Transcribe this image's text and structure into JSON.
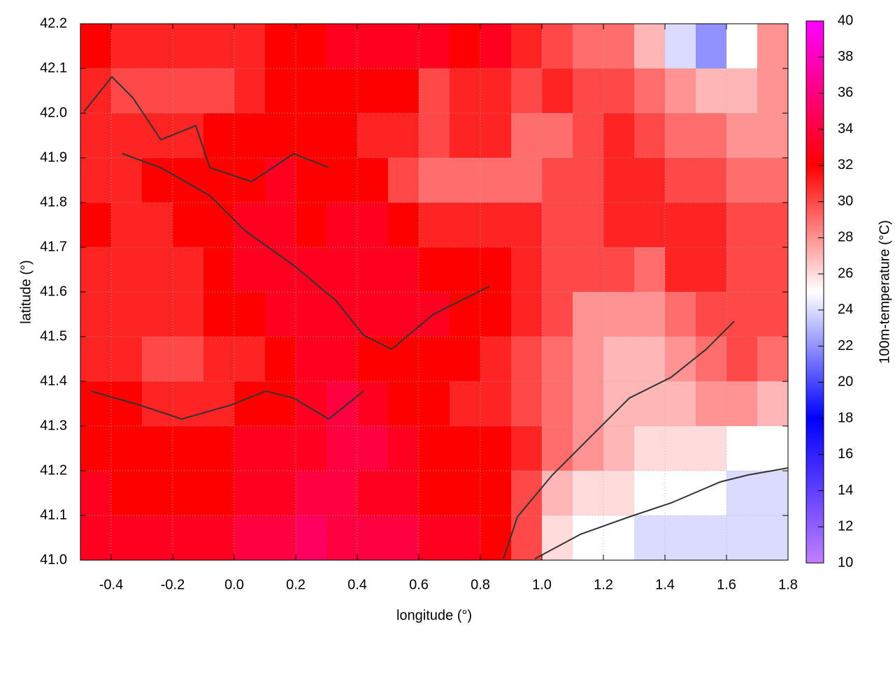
{
  "chart_data": {
    "type": "heatmap",
    "x_label": "longitude (°)",
    "y_label": "latitude (°)",
    "colorbar_label": "100m-temperature (°C)",
    "x": [
      -0.45,
      -0.35,
      -0.25,
      -0.15,
      -0.05,
      0.05,
      0.15,
      0.25,
      0.35,
      0.45,
      0.55,
      0.65,
      0.75,
      0.85,
      0.95,
      1.05,
      1.15,
      1.25,
      1.35,
      1.45,
      1.55,
      1.65,
      1.75
    ],
    "y": [
      42.15,
      42.05,
      41.95,
      41.85,
      41.75,
      41.65,
      41.55,
      41.45,
      41.35,
      41.25,
      41.15,
      41.05
    ],
    "z": [
      [
        32,
        31,
        31,
        31,
        31,
        31,
        32,
        32,
        33,
        33,
        33,
        33,
        32,
        33,
        31,
        30,
        29,
        29,
        27,
        24,
        22,
        25,
        28
      ],
      [
        31,
        30,
        30,
        30,
        30,
        31,
        32,
        32,
        32,
        32,
        32,
        30,
        31,
        31,
        30,
        31,
        30,
        30,
        29,
        28,
        27,
        27,
        28
      ],
      [
        31,
        31,
        31,
        31,
        32,
        32,
        32,
        32,
        32,
        31,
        31,
        30,
        31,
        31,
        29,
        29,
        30,
        31,
        30,
        29,
        29,
        28,
        28
      ],
      [
        31,
        31,
        32,
        32,
        32,
        32,
        33,
        32,
        32,
        32,
        30,
        29,
        29,
        29,
        29,
        30,
        30,
        31,
        31,
        30,
        30,
        29,
        29
      ],
      [
        32,
        31,
        31,
        32,
        32,
        33,
        33,
        32,
        33,
        33,
        32,
        31,
        31,
        31,
        31,
        30,
        30,
        31,
        31,
        31,
        31,
        30,
        30
      ],
      [
        31,
        31,
        31,
        31,
        32,
        33,
        33,
        33,
        33,
        33,
        33,
        32,
        32,
        32,
        31,
        30,
        30,
        30,
        29,
        31,
        31,
        30,
        30
      ],
      [
        31,
        31,
        31,
        31,
        32,
        32,
        33,
        33,
        33,
        33,
        33,
        33,
        32,
        32,
        31,
        30,
        28,
        28,
        28,
        29,
        30,
        30,
        30
      ],
      [
        31,
        31,
        30,
        30,
        31,
        31,
        32,
        33,
        33,
        32,
        32,
        32,
        32,
        31,
        30,
        29,
        28,
        27,
        27,
        28,
        29,
        30,
        29
      ],
      [
        32,
        32,
        31,
        31,
        31,
        32,
        32,
        33,
        34,
        33,
        32,
        32,
        31,
        31,
        30,
        29,
        28,
        27,
        27,
        27,
        28,
        28,
        27
      ],
      [
        32,
        32,
        32,
        32,
        32,
        33,
        33,
        33,
        34,
        34,
        33,
        32,
        32,
        32,
        31,
        29,
        28,
        27,
        26,
        26,
        26,
        25,
        25
      ],
      [
        33,
        32,
        32,
        32,
        32,
        33,
        33,
        34,
        34,
        33,
        33,
        32,
        32,
        32,
        30,
        27,
        26,
        26,
        25,
        25,
        25,
        24,
        24
      ],
      [
        33,
        33,
        33,
        33,
        33,
        34,
        34,
        35,
        34,
        34,
        34,
        33,
        33,
        32,
        30,
        26,
        25,
        25,
        24,
        24,
        24,
        24,
        24
      ]
    ],
    "xlim": [
      -0.5,
      1.8
    ],
    "xticks": [
      -0.4,
      -0.2,
      {
        "value": 0,
        "label": "0.0"
      },
      0.2,
      0.4,
      0.6,
      0.8,
      {
        "value": 1,
        "label": "1.0"
      },
      1.2,
      1.4,
      1.6,
      1.8
    ],
    "ylim": [
      41.0,
      42.2
    ],
    "yticks": [
      {
        "value": 41,
        "label": "41.0"
      },
      41.1,
      41.2,
      41.3,
      41.4,
      41.5,
      41.6,
      41.7,
      41.8,
      41.9,
      {
        "value": 42,
        "label": "42.0"
      },
      42.1,
      42.2
    ],
    "clim": [
      10,
      40
    ],
    "cticks": [
      10,
      12,
      14,
      16,
      18,
      20,
      22,
      24,
      26,
      28,
      30,
      32,
      34,
      36,
      38,
      40
    ],
    "colormap": [
      {
        "value": 10,
        "color": "#c080ff"
      },
      {
        "value": 18,
        "color": "#0000ff"
      },
      {
        "value": 25,
        "color": "#ffffff"
      },
      {
        "value": 32,
        "color": "#ff0000"
      },
      {
        "value": 40,
        "color": "#ff00ff"
      }
    ],
    "grid": true
  }
}
